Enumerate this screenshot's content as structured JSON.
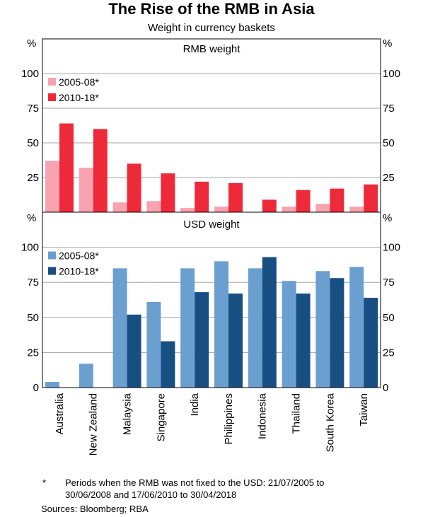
{
  "title": "The Rise of the RMB in Asia",
  "subtitle": "Weight in currency baskets",
  "chart_data": [
    {
      "type": "bar",
      "title": "RMB weight",
      "unit": "%",
      "categories": [
        "Australia",
        "New Zealand",
        "Malaysia",
        "Singapore",
        "India",
        "Philippines",
        "Indonesia",
        "Thailand",
        "South Korea",
        "Taiwan"
      ],
      "series": [
        {
          "name": "2005-08*",
          "color": "#f7a3b0",
          "values": [
            37,
            32,
            7,
            8,
            3,
            4,
            0,
            4,
            6,
            4
          ]
        },
        {
          "name": "2010-18*",
          "color": "#ee2a3a",
          "values": [
            64,
            60,
            35,
            28,
            22,
            21,
            9,
            16,
            17,
            20
          ]
        }
      ],
      "ylim": [
        0,
        125
      ],
      "yticks": [
        25,
        50,
        75,
        100
      ],
      "grid": true,
      "legend": "top-left"
    },
    {
      "type": "bar",
      "title": "USD weight",
      "unit": "%",
      "categories": [
        "Australia",
        "New Zealand",
        "Malaysia",
        "Singapore",
        "India",
        "Philippines",
        "Indonesia",
        "Thailand",
        "South Korea",
        "Taiwan"
      ],
      "series": [
        {
          "name": "2005-08*",
          "color": "#6b9fd0",
          "values": [
            4,
            17,
            85,
            61,
            85,
            90,
            85,
            76,
            83,
            86
          ]
        },
        {
          "name": "2010-18*",
          "color": "#174f83",
          "values": [
            0,
            0,
            52,
            33,
            68,
            67,
            93,
            67,
            78,
            64
          ]
        }
      ],
      "ylim": [
        0,
        125
      ],
      "yticks": [
        0,
        25,
        50,
        75,
        100
      ],
      "grid": true,
      "legend": "top-left"
    }
  ],
  "footnote": {
    "marker": "*",
    "text": "Periods when the RMB was not fixed to the USD: 21/07/2005 to 30/06/2008 and 17/06/2010 to 30/04/2018"
  },
  "sources": "Sources:  Bloomberg; RBA"
}
